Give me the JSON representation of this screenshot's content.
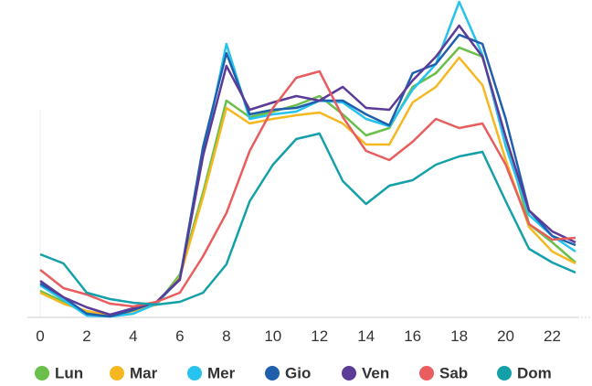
{
  "chart_data": {
    "type": "line",
    "x": [
      0,
      1,
      2,
      3,
      4,
      5,
      6,
      7,
      8,
      9,
      10,
      11,
      12,
      13,
      14,
      15,
      16,
      17,
      18,
      19,
      20,
      21,
      22,
      23
    ],
    "xlim": [
      0,
      23
    ],
    "xticks": [
      0,
      2,
      4,
      6,
      8,
      10,
      12,
      14,
      16,
      18,
      20,
      22
    ],
    "ylim": [
      0,
      350
    ],
    "series": [
      {
        "name": "Lun",
        "color": "#6abf4b",
        "values": [
          29,
          17,
          5,
          2,
          7,
          14,
          47,
          137,
          237,
          219,
          225,
          232,
          242,
          222,
          199,
          207,
          252,
          267,
          295,
          285,
          197,
          102,
          82,
          60
        ]
      },
      {
        "name": "Mar",
        "color": "#f5b820",
        "values": [
          27,
          15,
          7,
          2,
          7,
          14,
          44,
          132,
          229,
          212,
          217,
          221,
          224,
          212,
          189,
          189,
          235,
          252,
          284,
          254,
          172,
          99,
          72,
          59
        ]
      },
      {
        "name": "Mer",
        "color": "#26c3ee",
        "values": [
          35,
          19,
          2,
          1,
          4,
          15,
          42,
          177,
          299,
          217,
          222,
          225,
          237,
          235,
          217,
          209,
          249,
          277,
          345,
          287,
          187,
          112,
          89,
          72
        ]
      },
      {
        "name": "Gio",
        "color": "#1f5fae",
        "values": [
          37,
          22,
          4,
          1,
          8,
          17,
          42,
          187,
          289,
          222,
          227,
          229,
          237,
          237,
          222,
          210,
          267,
          277,
          309,
          299,
          217,
          117,
          89,
          79
        ]
      },
      {
        "name": "Ven",
        "color": "#5b3b97",
        "values": [
          40,
          22,
          11,
          3,
          10,
          17,
          41,
          177,
          275,
          227,
          235,
          242,
          237,
          252,
          229,
          227,
          259,
          285,
          319,
          285,
          197,
          117,
          94,
          82
        ]
      },
      {
        "name": "Sab",
        "color": "#e85d5d",
        "values": [
          52,
          32,
          25,
          15,
          12,
          17,
          27,
          67,
          114,
          182,
          229,
          262,
          269,
          219,
          182,
          172,
          192,
          217,
          207,
          212,
          167,
          102,
          85,
          87
        ]
      },
      {
        "name": "Dom",
        "color": "#14a0a8",
        "values": [
          69,
          59,
          27,
          20,
          16,
          14,
          17,
          27,
          58,
          127,
          167,
          195,
          201,
          149,
          124,
          144,
          150,
          167,
          176,
          181,
          127,
          75,
          60,
          49
        ]
      }
    ]
  }
}
